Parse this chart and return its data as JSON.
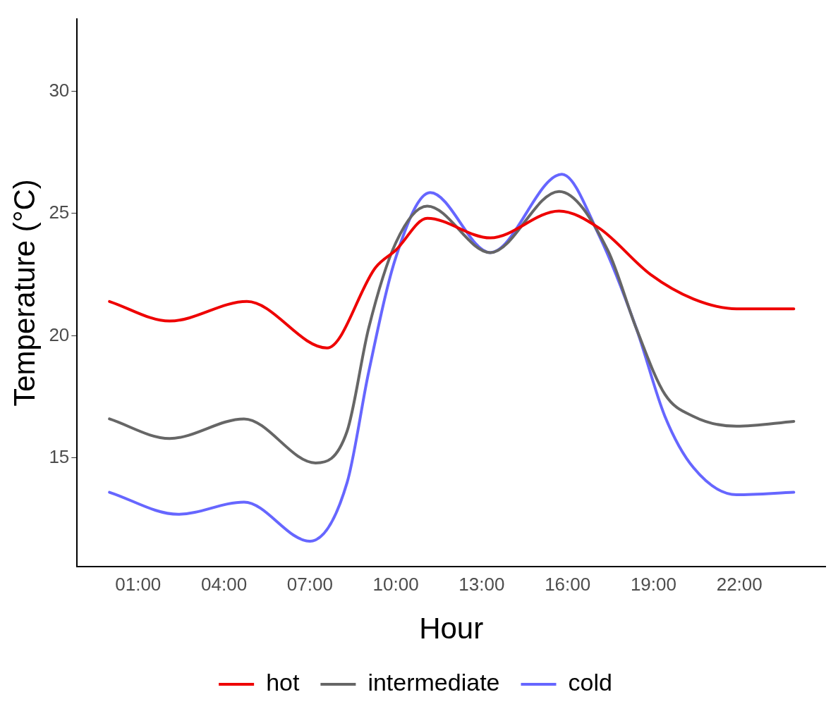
{
  "chart_data": {
    "type": "line",
    "xlabel": "Hour",
    "ylabel": "Temperature (°C)",
    "xlim": [
      -1.13,
      25
    ],
    "ylim": [
      10.55,
      32.96
    ],
    "xticks": [
      {
        "value": 1,
        "label": "01:00"
      },
      {
        "value": 4,
        "label": "04:00"
      },
      {
        "value": 7,
        "label": "07:00"
      },
      {
        "value": 10,
        "label": "10:00"
      },
      {
        "value": 13,
        "label": "13:00"
      },
      {
        "value": 16,
        "label": "16:00"
      },
      {
        "value": 19,
        "label": "19:00"
      },
      {
        "value": 22,
        "label": "22:00"
      }
    ],
    "yticks": [
      15,
      20,
      25,
      30
    ],
    "grid": false,
    "legend": "bottom",
    "marker": "none",
    "line_style": "solid",
    "series": [
      {
        "name": "hot",
        "color": "#ee0000",
        "x": [
          0,
          2.1,
          4.8,
          7.6,
          9.3,
          10,
          11.1,
          13.3,
          15.7,
          17.1,
          18.9,
          20.4,
          21.9,
          23.9
        ],
        "values": [
          21.4,
          20.6,
          21.4,
          19.5,
          22.8,
          23.5,
          24.8,
          24.0,
          25.1,
          24.4,
          22.5,
          21.5,
          21.1,
          21.1
        ]
      },
      {
        "name": "intermediate",
        "color": "#666666",
        "x": [
          0,
          2.1,
          4.7,
          7.2,
          8.3,
          9.05,
          10,
          11.1,
          13.3,
          15.7,
          17.4,
          18.4,
          19.4,
          20.4,
          21.9,
          23.9
        ],
        "values": [
          16.6,
          15.8,
          16.6,
          14.8,
          16.1,
          20.3,
          23.8,
          25.3,
          23.4,
          25.9,
          23.5,
          20.3,
          17.6,
          16.7,
          16.3,
          16.5
        ]
      },
      {
        "name": "cold",
        "color": "#6666ff",
        "x": [
          0,
          2.4,
          4.7,
          7.0,
          8.3,
          9.05,
          10,
          11.2,
          13.3,
          15.8,
          17.1,
          18.4,
          19.4,
          20.4,
          21.9,
          23.9
        ],
        "values": [
          13.6,
          12.7,
          13.2,
          11.6,
          14.0,
          18.5,
          23.2,
          25.85,
          23.4,
          26.6,
          24.1,
          20.3,
          16.7,
          14.6,
          13.5,
          13.6
        ]
      }
    ]
  }
}
